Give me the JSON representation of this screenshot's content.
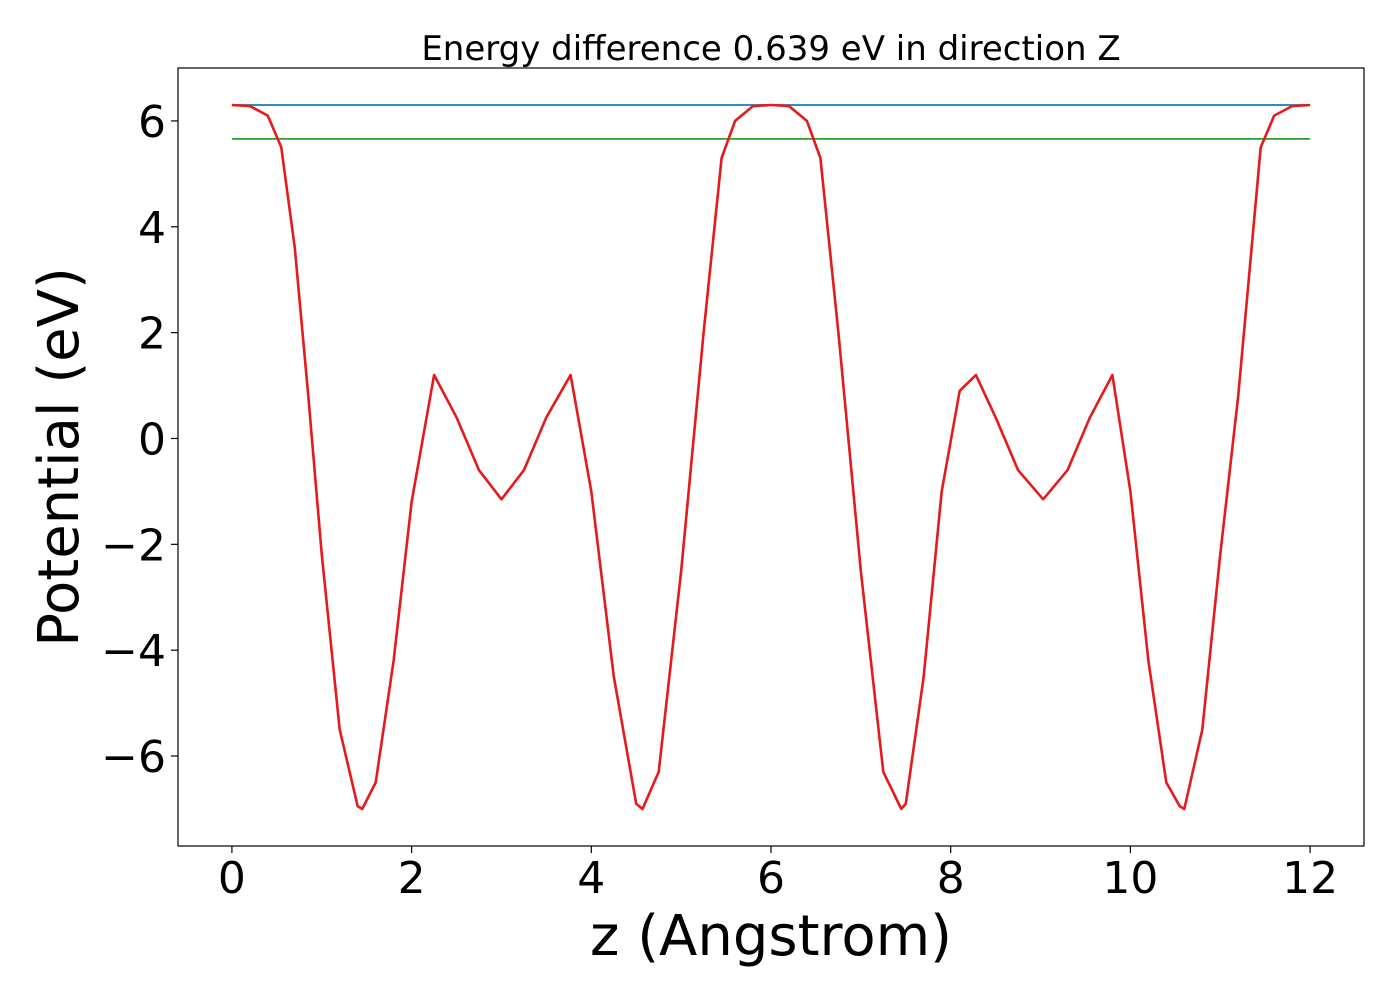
{
  "chart_data": {
    "type": "line",
    "title": "Energy difference 0.639 eV in direction Z",
    "xlabel": "z (Angstrom)",
    "ylabel": "Potential (eV)",
    "xlim": [
      -0.6,
      12.6
    ],
    "ylim": [
      -7.7,
      7.0
    ],
    "xticks": [
      0,
      2,
      4,
      6,
      8,
      10,
      12
    ],
    "xtick_labels": [
      "0",
      "2",
      "4",
      "6",
      "8",
      "10",
      "12"
    ],
    "yticks": [
      -6,
      -4,
      -2,
      0,
      2,
      4,
      6
    ],
    "ytick_labels": [
      "−6",
      "−4",
      "−2",
      "0",
      "2",
      "4",
      "6"
    ],
    "grid": false,
    "series": [
      {
        "color": "#1f77b4",
        "x": [
          0,
          12
        ],
        "y": [
          6.3,
          6.3
        ]
      },
      {
        "color": "#2ca02c",
        "x": [
          0,
          12
        ],
        "y": [
          5.66,
          5.66
        ]
      },
      {
        "color": "#e41a1c",
        "x": [
          0,
          0.2,
          0.4,
          0.55,
          0.7,
          0.85,
          1.0,
          1.2,
          1.4,
          1.45,
          1.6,
          1.8,
          2.0,
          2.25,
          2.5,
          2.75,
          3.0,
          3.25,
          3.5,
          3.77,
          4.0,
          4.25,
          4.5,
          4.57,
          4.75,
          5.0,
          5.25,
          5.45,
          5.6,
          5.8,
          6.0,
          6.2,
          6.4,
          6.55,
          6.75,
          7.0,
          7.25,
          7.45,
          7.5,
          7.7,
          7.9,
          8.1,
          8.28,
          8.5,
          8.75,
          9.03,
          9.3,
          9.55,
          9.8,
          10.0,
          10.2,
          10.4,
          10.55,
          10.6,
          10.8,
          11.0,
          11.2,
          11.45,
          11.6,
          11.8,
          12.0
        ],
        "y": [
          6.3,
          6.28,
          6.1,
          5.5,
          3.6,
          0.8,
          -2.2,
          -5.5,
          -6.95,
          -7.0,
          -6.5,
          -4.2,
          -1.2,
          1.2,
          0.4,
          -0.6,
          -1.15,
          -0.6,
          0.4,
          1.2,
          -1.0,
          -4.5,
          -6.9,
          -7.0,
          -6.3,
          -2.5,
          2.0,
          5.3,
          6.0,
          6.28,
          6.3,
          6.28,
          6.0,
          5.3,
          2.0,
          -2.5,
          -6.3,
          -7.0,
          -6.9,
          -4.5,
          -1.0,
          0.9,
          1.2,
          0.4,
          -0.6,
          -1.15,
          -0.6,
          0.4,
          1.2,
          -1.0,
          -4.2,
          -6.5,
          -6.95,
          -7.0,
          -5.5,
          -2.2,
          0.8,
          5.5,
          6.1,
          6.28,
          6.3
        ]
      }
    ]
  }
}
